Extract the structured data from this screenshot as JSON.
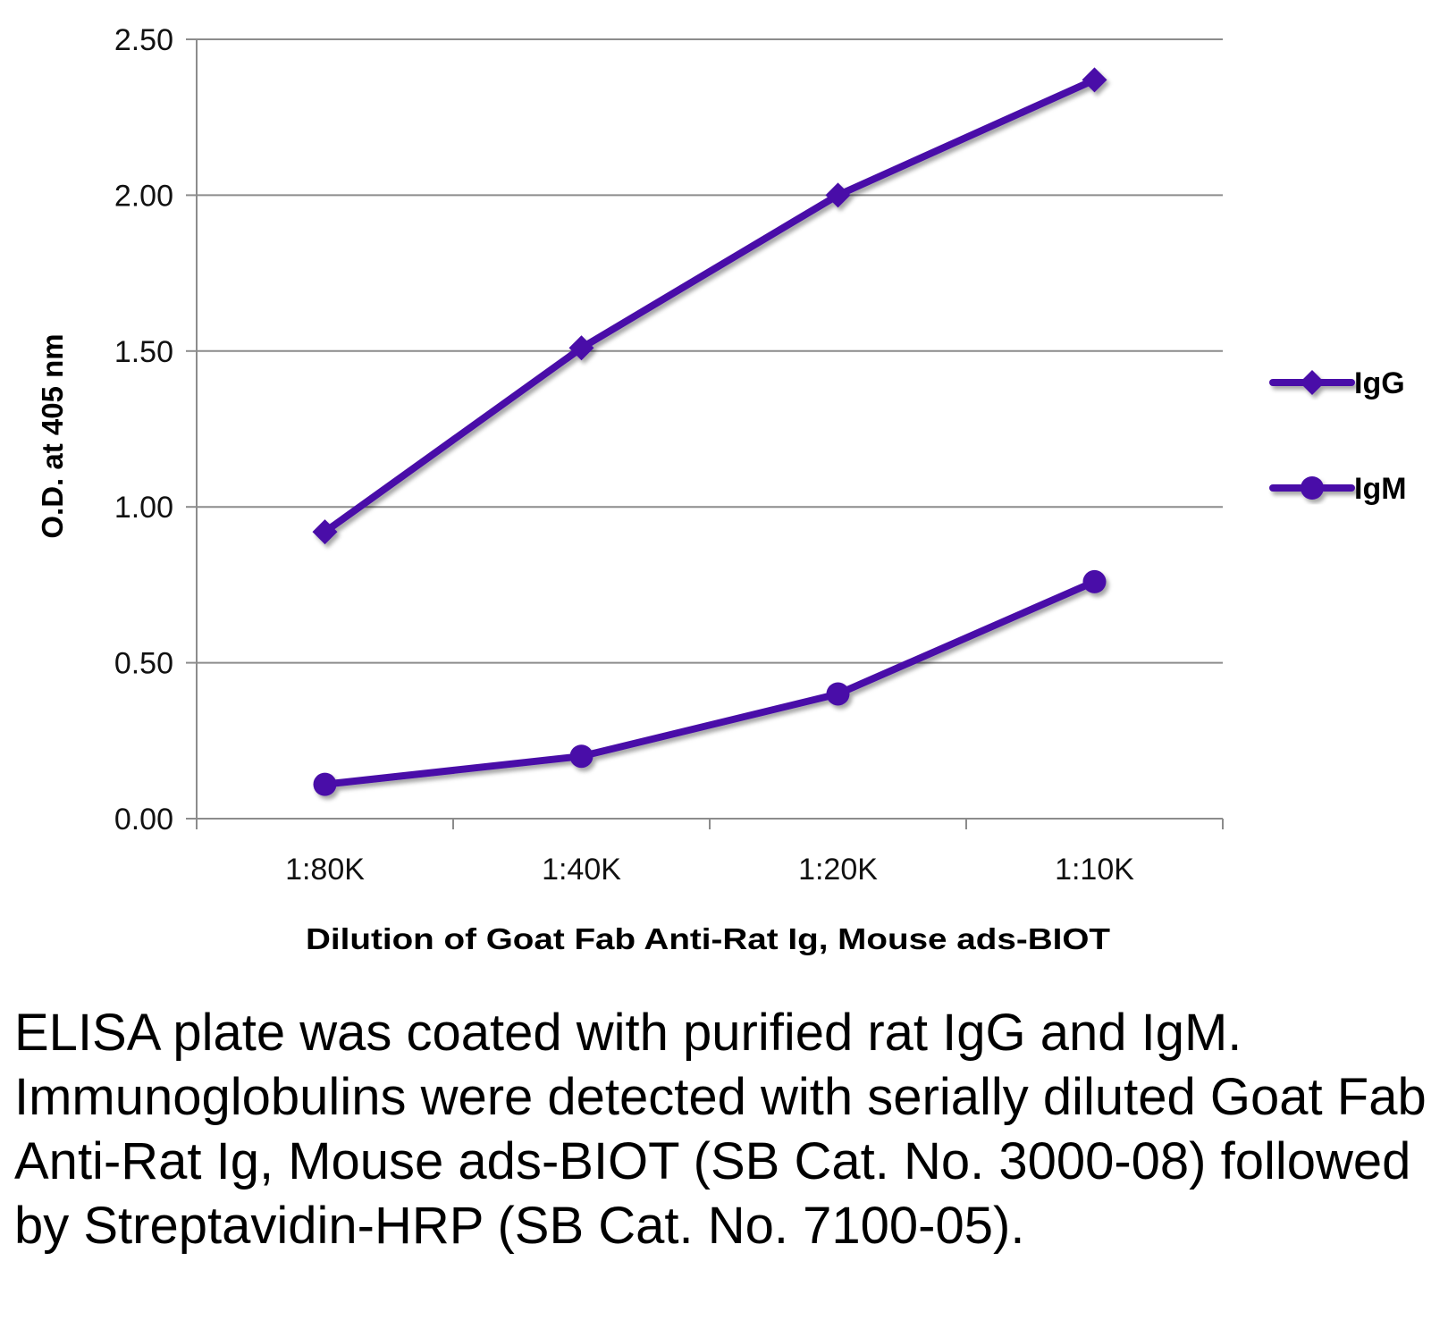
{
  "chart_data": {
    "type": "line",
    "categories": [
      "1:80K",
      "1:40K",
      "1:20K",
      "1:10K"
    ],
    "series": [
      {
        "name": "IgG",
        "marker": "diamond",
        "values": [
          0.92,
          1.51,
          2.0,
          2.37
        ]
      },
      {
        "name": "IgM",
        "marker": "circle",
        "values": [
          0.11,
          0.2,
          0.4,
          0.76
        ]
      }
    ],
    "ylim": [
      0,
      2.5
    ],
    "yticks": [
      "0.00",
      "0.50",
      "1.00",
      "1.50",
      "2.00",
      "2.50"
    ],
    "xlabel": "Dilution of Goat Fab Anti-Rat Ig, Mouse ads-BIOT",
    "ylabel": "O.D. at 405 nm",
    "grid": true,
    "legend_position": "right",
    "line_color": "#4a10a8"
  },
  "caption": "ELISA plate was coated with purified rat IgG and IgM.  Immunoglobulins were detected with serially diluted Goat Fab Anti-Rat Ig, Mouse ads-BIOT (SB Cat. No. 3000-08) followed by Streptavidin-HRP (SB Cat. No. 7100-05)."
}
